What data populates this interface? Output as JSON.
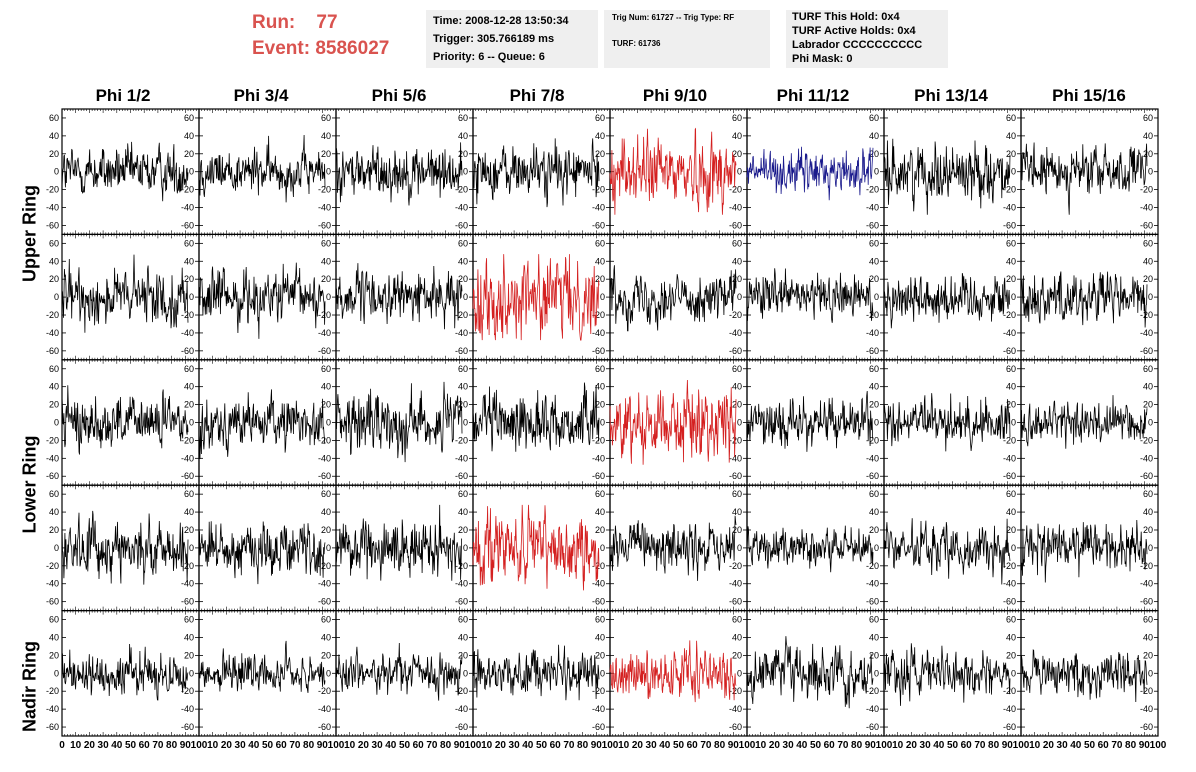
{
  "header": {
    "run_label": "Run:",
    "run_value": "77",
    "event_label": "Event:",
    "event_value": "8586027",
    "time": "Time: 2008-12-28 13:50:34",
    "trigger": "Trigger: 305.766189 ms",
    "priority": "Priority: 6 -- Queue: 6",
    "trig_num": "Trig Num: 61727 -- Trig Type: RF",
    "turf": "TURF: 61736",
    "turf_this_hold": "TURF This Hold: 0x4",
    "turf_active_holds": "TURF Active Holds: 0x4",
    "labrador": "Labrador CCCCCCCCCC",
    "phi_mask": "Phi Mask: 0"
  },
  "columns": [
    "Phi 1/2",
    "Phi 3/4",
    "Phi 5/6",
    "Phi 7/8",
    "Phi 9/10",
    "Phi 11/12",
    "Phi 13/14",
    "Phi 15/16"
  ],
  "ring_labels": [
    {
      "name": "upper",
      "text": "Upper Ring"
    },
    {
      "name": "lower",
      "text": "Lower Ring"
    },
    {
      "name": "nadir",
      "text": "Nadir Ring"
    }
  ],
  "colors": {
    "run_text": "#d9534f",
    "trace_default": "#000000",
    "trace_triggered": "#d42020",
    "trace_blue": "#1a1a8c",
    "info_bg": "#efefef"
  },
  "chart_data": {
    "type": "line",
    "rows": 5,
    "cols": 8,
    "xlim": [
      0,
      100
    ],
    "ylim": [
      -70,
      70
    ],
    "xticks": [
      0,
      10,
      20,
      30,
      40,
      50,
      60,
      70,
      80,
      90,
      100
    ],
    "xtick_labels": [
      "0",
      "10",
      "20",
      "30",
      "40",
      "50",
      "60",
      "70",
      "80",
      "90",
      "100"
    ],
    "last_col_xtick_labels": [
      "10",
      "20",
      "30",
      "40",
      "50",
      "60",
      "70",
      "80",
      "90",
      "100"
    ],
    "yticks": [
      60,
      40,
      20,
      0,
      -20,
      -40,
      -60
    ],
    "ytick_labels": [
      "60",
      "40",
      "20",
      "0",
      "-20",
      "-40",
      "-60"
    ],
    "n_samples": 260,
    "x_end": 92,
    "panels": [
      [
        "black",
        "black",
        "black",
        "black",
        "red",
        "blue",
        "black",
        "black"
      ],
      [
        "black",
        "black",
        "black",
        "red",
        "black",
        "black",
        "black",
        "black"
      ],
      [
        "black",
        "black",
        "black",
        "black",
        "red",
        "black",
        "black",
        "black"
      ],
      [
        "black",
        "black",
        "black",
        "red",
        "black",
        "black",
        "black",
        "black"
      ],
      [
        "black",
        "black",
        "black",
        "black",
        "red",
        "black",
        "black",
        "black"
      ]
    ],
    "amplitude": [
      [
        14,
        13,
        15,
        15,
        20,
        12,
        16,
        14
      ],
      [
        16,
        15,
        14,
        22,
        14,
        13,
        14,
        15
      ],
      [
        15,
        14,
        17,
        16,
        20,
        13,
        13,
        12
      ],
      [
        16,
        15,
        16,
        20,
        14,
        12,
        13,
        14
      ],
      [
        12,
        11,
        11,
        13,
        13,
        14,
        13,
        13
      ]
    ]
  }
}
